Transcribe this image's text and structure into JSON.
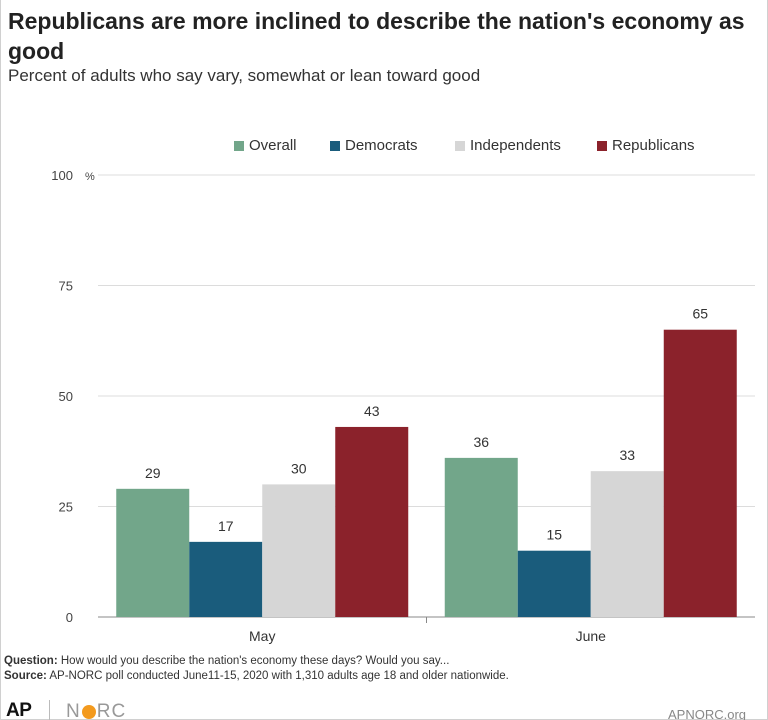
{
  "title": "Republicans are more inclined to describe the nation's economy as good",
  "subtitle": "Percent of adults who say vary, somewhat or lean toward good",
  "footer": {
    "question_label": "Question:",
    "question_text": "How would you describe the nation's economy these days? Would you say...",
    "source_label": "Source:",
    "source_text": "AP-NORC poll conducted June11-15, 2020 with 1,310 adults age 18 and older nationwide."
  },
  "branding": {
    "ap_logo": "AP",
    "norc_logo_left": "N",
    "norc_logo_right": "RC",
    "website": "APNORC.org"
  },
  "chart_data": {
    "type": "bar",
    "categories": [
      "May",
      "June"
    ],
    "series": [
      {
        "name": "Overall",
        "values": [
          29,
          36
        ],
        "color": "#72a68a"
      },
      {
        "name": "Democrats",
        "values": [
          17,
          15
        ],
        "color": "#1a5c7c"
      },
      {
        "name": "Independents",
        "values": [
          30,
          33
        ],
        "color": "#d6d6d6"
      },
      {
        "name": "Republicans",
        "values": [
          43,
          65
        ],
        "color": "#8b222b"
      }
    ],
    "ylim": [
      0,
      100
    ],
    "yticks": [
      0,
      25,
      50,
      75,
      100
    ],
    "yunit": "%",
    "grid": true,
    "legend_position": "top-right"
  }
}
